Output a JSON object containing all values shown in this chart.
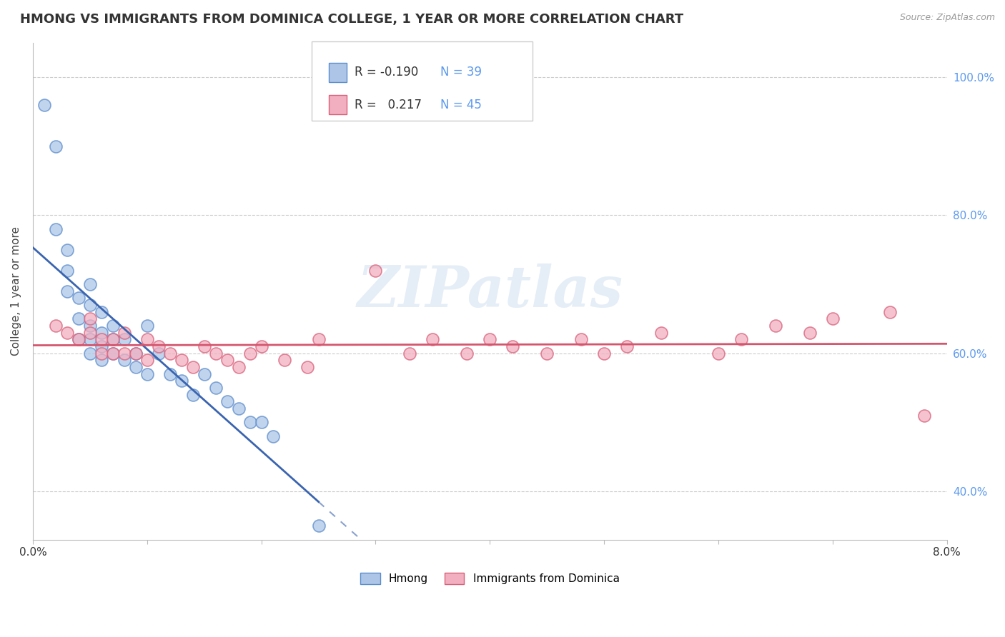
{
  "title": "HMONG VS IMMIGRANTS FROM DOMINICA COLLEGE, 1 YEAR OR MORE CORRELATION CHART",
  "source_text": "Source: ZipAtlas.com",
  "ylabel": "College, 1 year or more",
  "xlim": [
    0.0,
    0.08
  ],
  "ylim": [
    0.33,
    1.05
  ],
  "xticks": [
    0.0,
    0.01,
    0.02,
    0.03,
    0.04,
    0.05,
    0.06,
    0.07,
    0.08
  ],
  "xtick_labels": [
    "0.0%",
    "",
    "",
    "",
    "",
    "",
    "",
    "",
    "8.0%"
  ],
  "yticks": [
    0.4,
    0.6,
    0.8,
    1.0
  ],
  "ytick_labels": [
    "40.0%",
    "60.0%",
    "80.0%",
    "100.0%"
  ],
  "watermark": "ZIPatlas",
  "legend_r1": "R = -0.190",
  "legend_n1": "N = 39",
  "legend_r2": "R =   0.217",
  "legend_n2": "N = 45",
  "hmong_color": "#adc6e8",
  "dominica_color": "#f2afc0",
  "hmong_edge_color": "#5b8ccc",
  "dominica_edge_color": "#d9607a",
  "hmong_line_color": "#3a64b0",
  "dominica_line_color": "#d4566e",
  "title_fontsize": 13,
  "label_fontsize": 11,
  "tick_fontsize": 11,
  "hmong_x": [
    0.001,
    0.002,
    0.002,
    0.003,
    0.003,
    0.003,
    0.004,
    0.004,
    0.004,
    0.005,
    0.005,
    0.005,
    0.005,
    0.005,
    0.006,
    0.006,
    0.006,
    0.006,
    0.007,
    0.007,
    0.007,
    0.008,
    0.008,
    0.009,
    0.009,
    0.01,
    0.01,
    0.011,
    0.012,
    0.013,
    0.014,
    0.015,
    0.016,
    0.017,
    0.018,
    0.019,
    0.02,
    0.021,
    0.025
  ],
  "hmong_y": [
    0.96,
    0.9,
    0.78,
    0.75,
    0.72,
    0.69,
    0.68,
    0.65,
    0.62,
    0.7,
    0.67,
    0.64,
    0.62,
    0.6,
    0.66,
    0.63,
    0.61,
    0.59,
    0.64,
    0.62,
    0.6,
    0.62,
    0.59,
    0.6,
    0.58,
    0.64,
    0.57,
    0.6,
    0.57,
    0.56,
    0.54,
    0.57,
    0.55,
    0.53,
    0.52,
    0.5,
    0.5,
    0.48,
    0.35
  ],
  "dominica_x": [
    0.002,
    0.003,
    0.004,
    0.005,
    0.005,
    0.006,
    0.006,
    0.007,
    0.007,
    0.008,
    0.008,
    0.009,
    0.01,
    0.01,
    0.011,
    0.012,
    0.013,
    0.014,
    0.015,
    0.016,
    0.017,
    0.018,
    0.019,
    0.02,
    0.022,
    0.024,
    0.025,
    0.03,
    0.033,
    0.035,
    0.038,
    0.04,
    0.042,
    0.045,
    0.048,
    0.05,
    0.052,
    0.055,
    0.06,
    0.062,
    0.065,
    0.068,
    0.07,
    0.075,
    0.078
  ],
  "dominica_y": [
    0.64,
    0.63,
    0.62,
    0.65,
    0.63,
    0.62,
    0.6,
    0.62,
    0.6,
    0.63,
    0.6,
    0.6,
    0.62,
    0.59,
    0.61,
    0.6,
    0.59,
    0.58,
    0.61,
    0.6,
    0.59,
    0.58,
    0.6,
    0.61,
    0.59,
    0.58,
    0.62,
    0.72,
    0.6,
    0.62,
    0.6,
    0.62,
    0.61,
    0.6,
    0.62,
    0.6,
    0.61,
    0.63,
    0.6,
    0.62,
    0.64,
    0.63,
    0.65,
    0.66,
    0.51
  ],
  "hmong_r": -0.19,
  "dominica_r": 0.217
}
